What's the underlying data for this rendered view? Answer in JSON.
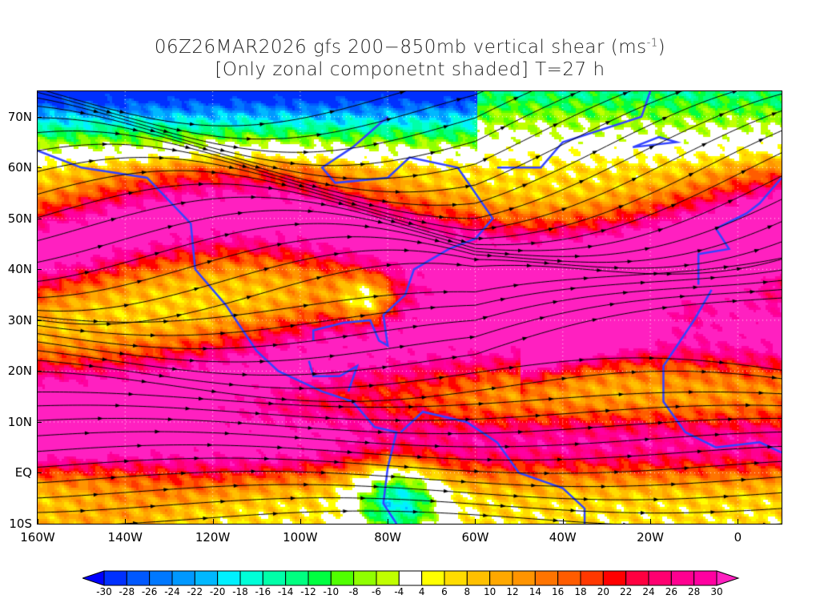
{
  "title": {
    "line1": "06Z26MAR2026 gfs 200−850mb vertical shear (ms",
    "line1_sup": "-1",
    "line1_end": ")",
    "line2": "[Only zonal componetnt shaded] T=27 h"
  },
  "map": {
    "lon_range": [
      -160,
      10
    ],
    "lat_range": [
      -10,
      75
    ],
    "lat_labels": [
      {
        "lat": 70,
        "label": "70N"
      },
      {
        "lat": 60,
        "label": "60N"
      },
      {
        "lat": 50,
        "label": "50N"
      },
      {
        "lat": 40,
        "label": "40N"
      },
      {
        "lat": 30,
        "label": "30N"
      },
      {
        "lat": 20,
        "label": "20N"
      },
      {
        "lat": 10,
        "label": "10N"
      },
      {
        "lat": 0,
        "label": "EQ"
      },
      {
        "lat": -10,
        "label": "10S"
      }
    ],
    "lon_labels": [
      {
        "lon": -160,
        "label": "160W"
      },
      {
        "lon": -140,
        "label": "140W"
      },
      {
        "lon": -120,
        "label": "120W"
      },
      {
        "lon": -100,
        "label": "100W"
      },
      {
        "lon": -80,
        "label": "80W"
      },
      {
        "lon": -60,
        "label": "60W"
      },
      {
        "lon": -40,
        "label": "40W"
      },
      {
        "lon": -20,
        "label": "20W"
      },
      {
        "lon": 0,
        "label": "0"
      }
    ],
    "coast_color": "#3344ff",
    "streamline_color": "#000000"
  },
  "colorbar": {
    "units": "ms-1",
    "labels": [
      "-30",
      "-28",
      "-26",
      "-24",
      "-22",
      "-20",
      "-18",
      "-16",
      "-14",
      "-12",
      "-10",
      "-8",
      "-6",
      "-4",
      "4",
      "6",
      "8",
      "10",
      "12",
      "14",
      "16",
      "18",
      "20",
      "22",
      "24",
      "26",
      "28",
      "30"
    ],
    "low_arrow_color": "#0000ff",
    "high_arrow_color": "#ff20c0",
    "colors": [
      "#0030ff",
      "#0058ff",
      "#0078ff",
      "#0098ff",
      "#00b8ff",
      "#00f0ff",
      "#00ffd8",
      "#00ffa8",
      "#00ff80",
      "#00ff40",
      "#50ff00",
      "#90ff00",
      "#c0ff00",
      "#ffffff",
      "#ffff00",
      "#ffdc00",
      "#ffc000",
      "#ffa800",
      "#ff9400",
      "#ff7400",
      "#ff5c00",
      "#ff3800",
      "#ff0000",
      "#ff0040",
      "#ff0070",
      "#ff0090",
      "#ff00a0"
    ]
  }
}
